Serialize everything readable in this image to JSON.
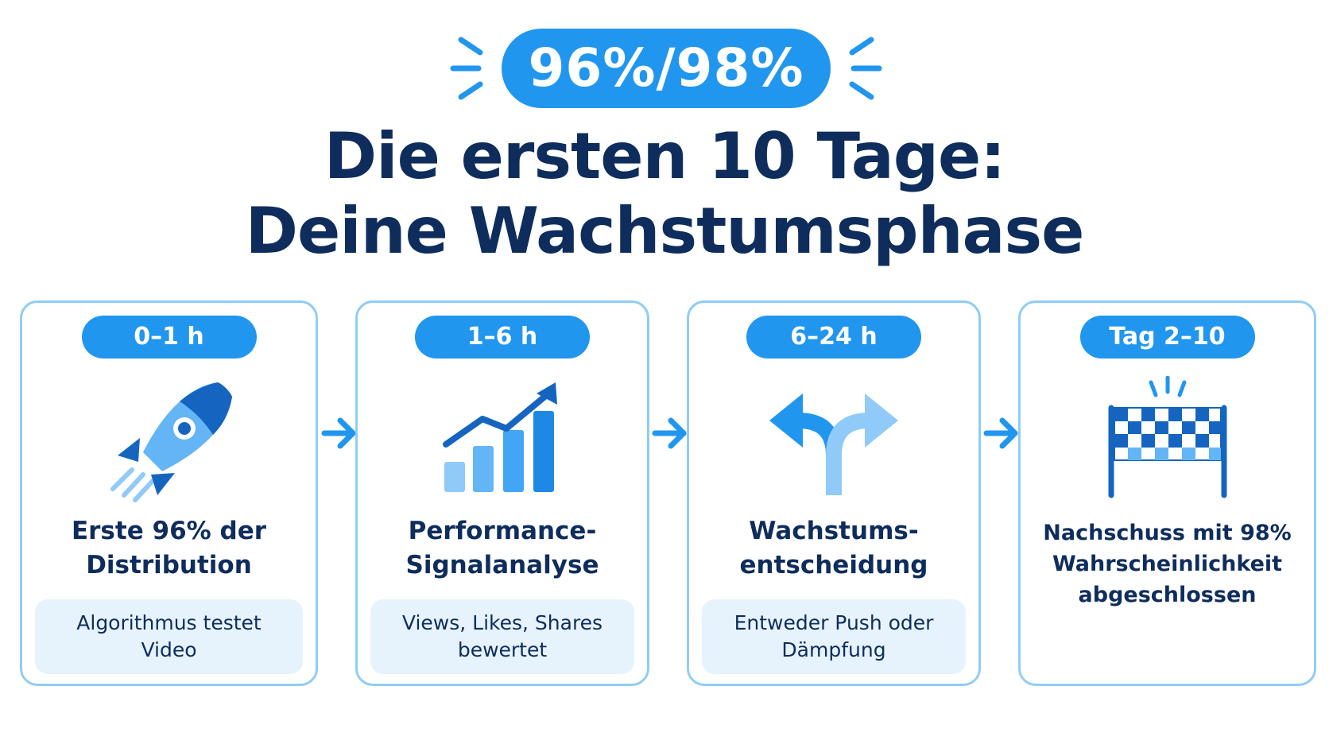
{
  "header": {
    "badge": "96%/98%",
    "title_line1": "Die ersten 10 Tage:",
    "title_line2": "Deine Wachstumsphase"
  },
  "steps": [
    {
      "time": "0–1 h",
      "title": "Erste 96% der Distribution",
      "note": "Algorithmus testet Video",
      "icon": "rocket-icon"
    },
    {
      "time": "1–6 h",
      "title": "Performance-Signalanalyse",
      "note": "Views, Likes, Shares bewertet",
      "icon": "growth-chart-icon"
    },
    {
      "time": "6–24 h",
      "title": "Wachstums-entscheidung",
      "note": "Entweder Push oder Dämpfung",
      "icon": "fork-arrows-icon"
    },
    {
      "time": "Tag 2–10",
      "title": "Nachschuss mit 98% Wahrscheinlichkeit abgeschlossen",
      "note": "",
      "icon": "finish-flag-icon"
    }
  ],
  "colors": {
    "accent": "#2196ee",
    "dark": "#0f2d5c",
    "border": "#8fcdf5",
    "note_bg": "#e6f3fd",
    "icon_light": "#64b5f6",
    "icon_mid": "#42a5f5",
    "icon_dark": "#1565c0"
  }
}
